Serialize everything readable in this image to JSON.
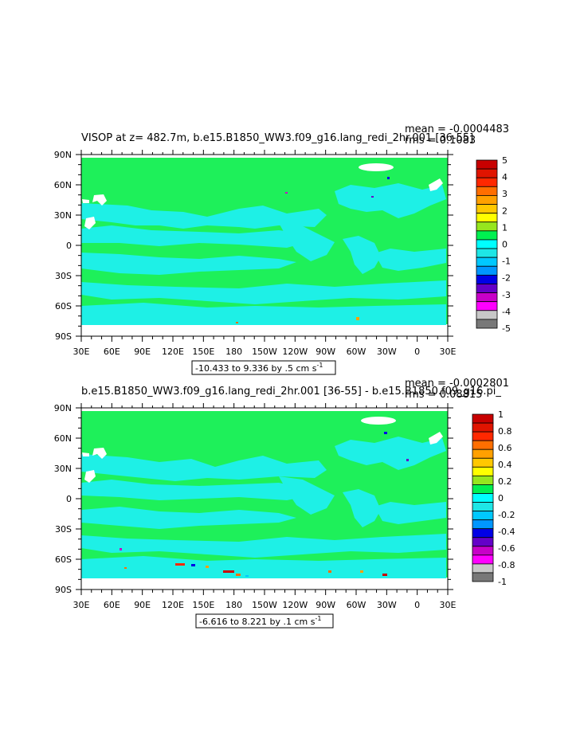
{
  "chart_data": [
    {
      "type": "heatmap",
      "title": "VISOP at z= 482.7m, b.e15.B1850_WW3.f09_g16.lang_redi_2hr.001 [36-55]",
      "stats": [
        "mean = -0.0004483",
        "rms = 0.1083"
      ],
      "xlabel": "",
      "ylabel": "",
      "x_ticks": [
        "30E",
        "60E",
        "90E",
        "120E",
        "150E",
        "180",
        "150W",
        "120W",
        "90W",
        "60W",
        "30W",
        "0",
        "30E"
      ],
      "y_ticks": [
        "90N",
        "60N",
        "30N",
        "0",
        "30S",
        "60S",
        "90S"
      ],
      "xlim": [
        "30E",
        "30E"
      ],
      "ylim": [
        "90S",
        "90N"
      ],
      "colorbar_levels": [
        "5",
        "4",
        "3",
        "2",
        "1",
        "0",
        "-1",
        "-2",
        "-3",
        "-4",
        "-5"
      ],
      "colorbar_colors": [
        "#c80000",
        "#e01400",
        "#ff2800",
        "#ff6e00",
        "#ffa000",
        "#ffc800",
        "#ffff00",
        "#96e61e",
        "#00f050",
        "#00ffff",
        "#1ee6e6",
        "#00c8ff",
        "#0096ff",
        "#0000e6",
        "#6400c8",
        "#c800c8",
        "#ff00ff",
        "#c8c8c8",
        "#787878"
      ],
      "range_label": "-10.433 to 9.336 by .5 cm s",
      "range_unit_exp": "-1",
      "dominant_value_range": [
        -0.5,
        0.5
      ],
      "background_color": "#1ef05a",
      "secondary_color": "#1ef0e6"
    },
    {
      "type": "heatmap",
      "title": "b.e15.B1850_WW3.f09_g16.lang_redi_2hr.001 [36-55] - b.e15.B1850.f09_g16.pi_",
      "stats": [
        "mean = -0.0002801",
        "rms = 0.08815"
      ],
      "xlabel": "",
      "ylabel": "",
      "x_ticks": [
        "30E",
        "60E",
        "90E",
        "120E",
        "150E",
        "180",
        "150W",
        "120W",
        "90W",
        "60W",
        "30W",
        "0",
        "30E"
      ],
      "y_ticks": [
        "90N",
        "60N",
        "30N",
        "0",
        "30S",
        "60S",
        "90S"
      ],
      "xlim": [
        "30E",
        "30E"
      ],
      "ylim": [
        "90S",
        "90N"
      ],
      "colorbar_levels": [
        "1",
        "0.8",
        "0.6",
        "0.4",
        "0.2",
        "0",
        "-0.2",
        "-0.4",
        "-0.6",
        "-0.8",
        "-1"
      ],
      "colorbar_colors": [
        "#c80000",
        "#e01400",
        "#ff2800",
        "#ff6e00",
        "#ffa000",
        "#ffc800",
        "#ffff00",
        "#96e61e",
        "#00f050",
        "#00ffff",
        "#1ee6e6",
        "#00c8ff",
        "#0096ff",
        "#0000e6",
        "#6400c8",
        "#c800c8",
        "#ff00ff",
        "#c8c8c8",
        "#787878"
      ],
      "range_label": "-6.616 to 8.221 by .1 cm s",
      "range_unit_exp": "-1",
      "dominant_value_range": [
        -0.1,
        0.1
      ],
      "background_color": "#1ef05a",
      "secondary_color": "#1ef0e6"
    }
  ]
}
